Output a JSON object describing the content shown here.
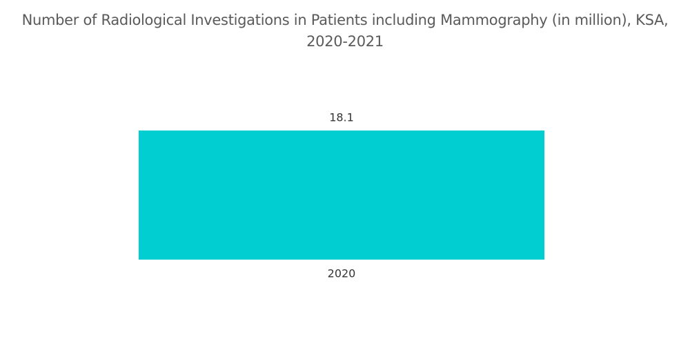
{
  "chart_data": {
    "type": "bar",
    "title": "Number of Radiological Investigations in Patients including Mammography (in million), KSA, 2020-2021",
    "categories": [
      "2020"
    ],
    "values": [
      18.1
    ],
    "color": "#00ced1"
  }
}
